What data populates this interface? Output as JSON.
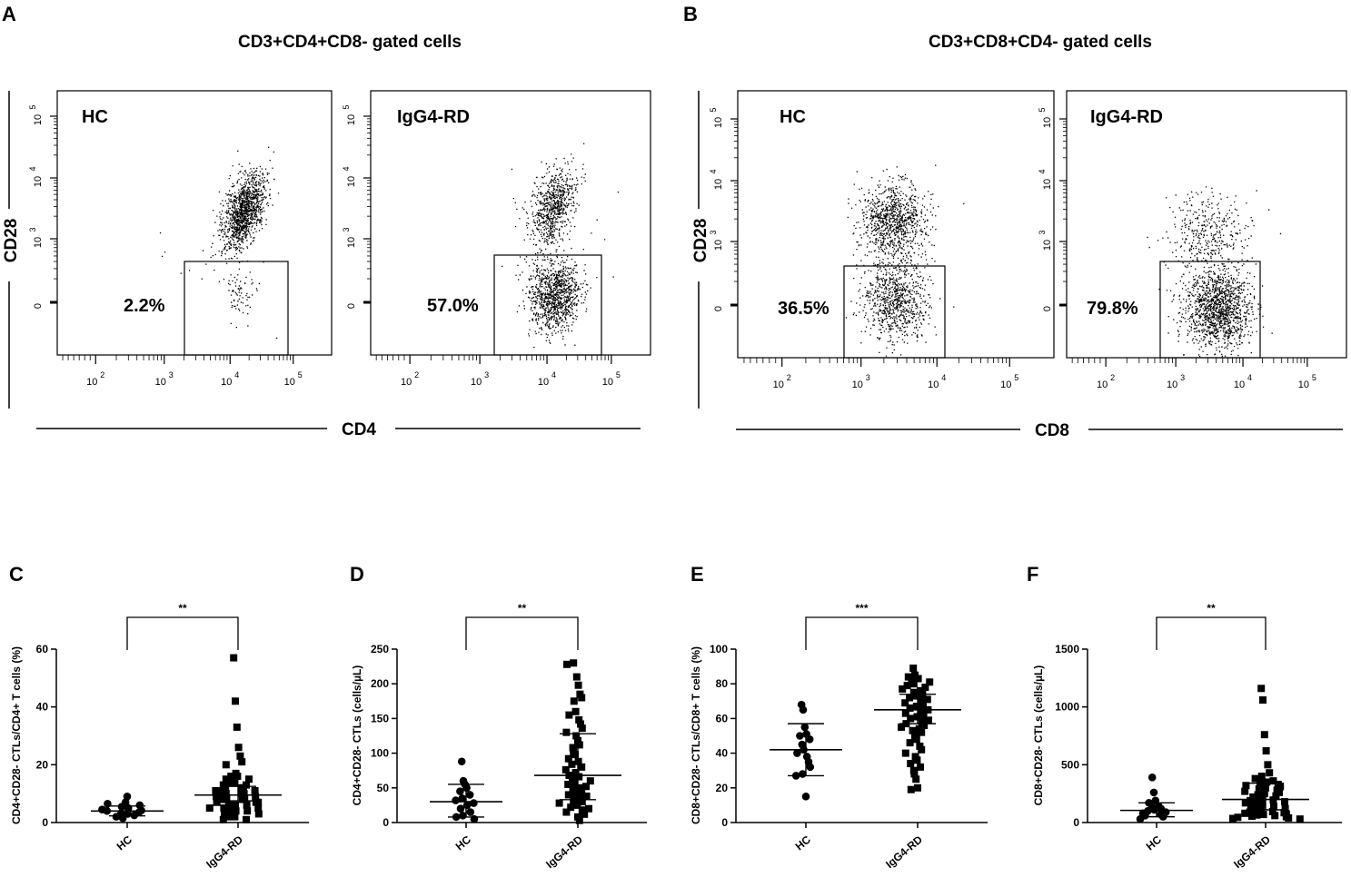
{
  "chart_data": [
    {
      "id": "A",
      "type": "scatter",
      "subtype": "flow-cytometry",
      "title": "CD3+CD4+CD8- gated cells",
      "xlabel": "CD4",
      "ylabel": "CD28",
      "x_ticks": [
        "10",
        "10",
        "10",
        "10"
      ],
      "x_tick_exps": [
        "2",
        "3",
        "4",
        "5"
      ],
      "y_ticks": [
        "0",
        "10",
        "10",
        "10"
      ],
      "y_tick_exps": [
        "",
        "3",
        "4",
        "5"
      ],
      "panels": [
        {
          "label": "HC",
          "gate_percent": "2.2%"
        },
        {
          "label": "IgG4-RD",
          "gate_percent": "57.0%"
        }
      ]
    },
    {
      "id": "B",
      "type": "scatter",
      "subtype": "flow-cytometry",
      "title": "CD3+CD8+CD4- gated cells",
      "xlabel": "CD8",
      "ylabel": "CD28",
      "x_ticks": [
        "10",
        "10",
        "10",
        "10"
      ],
      "x_tick_exps": [
        "2",
        "3",
        "4",
        "5"
      ],
      "y_ticks": [
        "0",
        "10",
        "10",
        "10"
      ],
      "y_tick_exps": [
        "",
        "3",
        "4",
        "5"
      ],
      "panels": [
        {
          "label": "HC",
          "gate_percent": "36.5%"
        },
        {
          "label": "IgG4-RD",
          "gate_percent": "79.8%"
        }
      ]
    },
    {
      "id": "C",
      "type": "scatter",
      "ylabel": "CD4+CD28- CTLs/CD4+ T cells (%)",
      "ylim": [
        0,
        60
      ],
      "yticks": [
        0,
        20,
        40,
        60
      ],
      "categories": [
        "HC",
        "IgG4-RD"
      ],
      "significance": "**",
      "series": [
        {
          "name": "HC",
          "marker": "circle",
          "mean": 4.0,
          "sd_low": 2.3,
          "sd_high": 5.7,
          "values": [
            1.5,
            2,
            2.5,
            3,
            3.3,
            3.6,
            4,
            4.2,
            4.5,
            5,
            5.5,
            6,
            6.5,
            7,
            9
          ]
        },
        {
          "name": "IgG4-RD",
          "marker": "square",
          "mean": 9.5,
          "sd_low": 7.5,
          "sd_high": 12.5,
          "values": [
            57,
            42,
            33,
            26,
            23,
            21,
            20,
            17,
            16,
            16,
            15,
            15,
            14,
            14,
            13,
            13,
            12,
            12,
            12,
            11,
            11,
            11,
            10,
            10,
            10,
            9,
            9,
            9,
            8,
            8,
            8,
            8,
            7,
            7,
            7,
            6,
            6,
            6,
            5,
            5,
            5,
            4,
            4,
            4,
            3,
            3,
            2,
            2,
            1,
            1
          ]
        }
      ]
    },
    {
      "id": "D",
      "type": "scatter",
      "ylabel": "CD4+CD28- CTLs (cells/µL)",
      "ylim": [
        0,
        250
      ],
      "yticks": [
        0,
        50,
        100,
        150,
        200,
        250
      ],
      "categories": [
        "HC",
        "IgG4-RD"
      ],
      "significance": "**",
      "series": [
        {
          "name": "HC",
          "marker": "circle",
          "mean": 30,
          "sd_low": 8,
          "sd_high": 55,
          "values": [
            88,
            60,
            55,
            50,
            45,
            40,
            35,
            32,
            28,
            25,
            20,
            15,
            10,
            8,
            5
          ]
        },
        {
          "name": "IgG4-RD",
          "marker": "square",
          "mean": 68,
          "sd_low": 33,
          "sd_high": 128,
          "values": [
            230,
            228,
            210,
            198,
            185,
            180,
            175,
            160,
            155,
            148,
            142,
            136,
            130,
            125,
            118,
            112,
            108,
            102,
            98,
            92,
            88,
            84,
            80,
            76,
            72,
            68,
            66,
            64,
            60,
            58,
            55,
            52,
            50,
            48,
            45,
            42,
            40,
            38,
            35,
            32,
            30,
            28,
            25,
            22,
            20,
            18,
            15,
            12,
            8,
            3
          ]
        }
      ]
    },
    {
      "id": "E",
      "type": "scatter",
      "ylabel": "CD8+CD28- CTLs/CD8+ T cells (%)",
      "ylim": [
        0,
        100
      ],
      "yticks": [
        0,
        20,
        40,
        60,
        80,
        100
      ],
      "categories": [
        "HC",
        "IgG4-RD"
      ],
      "significance": "***",
      "series": [
        {
          "name": "HC",
          "marker": "circle",
          "mean": 42,
          "sd_low": 27,
          "sd_high": 57,
          "values": [
            68,
            65,
            55,
            51,
            50,
            48,
            45,
            42,
            40,
            38,
            35,
            32,
            28,
            27,
            15
          ]
        },
        {
          "name": "IgG4-RD",
          "marker": "square",
          "mean": 65,
          "sd_low": 57,
          "sd_high": 74,
          "values": [
            89,
            85,
            84,
            83,
            82,
            81,
            80,
            79,
            78,
            77,
            76,
            75,
            74,
            73,
            72,
            71,
            70,
            69,
            68,
            67,
            66,
            65,
            64,
            63,
            62,
            61,
            60,
            59,
            58,
            57,
            56,
            55,
            54,
            53,
            52,
            50,
            48,
            46,
            44,
            42,
            40,
            38,
            36,
            34,
            32,
            30,
            28,
            25,
            20,
            19
          ]
        }
      ]
    },
    {
      "id": "F",
      "type": "scatter",
      "ylabel": "CD8+CD28- CTLs (cells/µL)",
      "ylim": [
        0,
        1500
      ],
      "yticks": [
        0,
        500,
        1000,
        1500
      ],
      "categories": [
        "HC",
        "IgG4-RD"
      ],
      "significance": "**",
      "series": [
        {
          "name": "HC",
          "marker": "circle",
          "mean": 105,
          "sd_low": 50,
          "sd_high": 170,
          "values": [
            390,
            260,
            190,
            170,
            140,
            130,
            120,
            110,
            100,
            90,
            80,
            70,
            60,
            50,
            30
          ]
        },
        {
          "name": "IgG4-RD",
          "marker": "square",
          "mean": 200,
          "sd_low": 110,
          "sd_high": 340,
          "values": [
            1160,
            1060,
            760,
            620,
            500,
            430,
            400,
            380,
            360,
            350,
            340,
            330,
            320,
            310,
            300,
            290,
            280,
            270,
            260,
            250,
            240,
            230,
            220,
            210,
            200,
            195,
            190,
            180,
            170,
            160,
            150,
            140,
            130,
            120,
            110,
            100,
            95,
            90,
            85,
            80,
            75,
            70,
            65,
            60,
            55,
            50,
            45,
            40,
            35,
            30
          ]
        }
      ]
    }
  ]
}
